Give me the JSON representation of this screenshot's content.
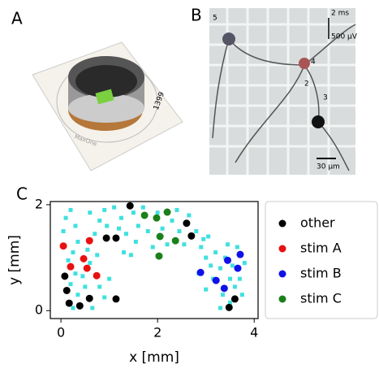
{
  "panels": {
    "a": {
      "label": "A",
      "chip_number": "1399",
      "chip_brand": "MaxOne"
    },
    "b": {
      "label": "B",
      "electrode": "5",
      "time_scale": "2 ms",
      "voltage_scale": "500 µV",
      "markers": [
        "4",
        "2",
        "3"
      ],
      "length_scale": "30 µm"
    },
    "c": {
      "label": "C"
    }
  },
  "chart_data": {
    "type": "scatter",
    "xlabel": "x [mm]",
    "ylabel": "y [mm]",
    "xlim": [
      -0.22,
      4.08
    ],
    "ylim": [
      -0.15,
      2.06
    ],
    "xticks": [
      0,
      2,
      4
    ],
    "yticks": [
      0,
      2
    ],
    "legend": "right",
    "series": [
      {
        "color": "#40e0e0",
        "marker": "square",
        "x": [
          0.05,
          0.1,
          0.2,
          0.3,
          0.35,
          0.25,
          0.15,
          0.3,
          0.2,
          0.35,
          0.5,
          0.45,
          0.6,
          0.55,
          0.7,
          0.8,
          0.6,
          0.9,
          0.75,
          0.8,
          0.65,
          0.25,
          0.95,
          1.0,
          0.9,
          1.1,
          1.25,
          1.2,
          1.35,
          1.5,
          1.6,
          1.55,
          1.7,
          1.8,
          1.9,
          2.0,
          2.1,
          2.2,
          2.3,
          2.4,
          2.45,
          2.55,
          2.65,
          1.3,
          1.45,
          2.8,
          2.9,
          3.0,
          2.95,
          3.1,
          3.2,
          3.15,
          3.3,
          3.35,
          3.4,
          3.5,
          3.55,
          3.6,
          3.65,
          3.7,
          3.75,
          3.8,
          3.5,
          3.3,
          3.0,
          2.85,
          3.05,
          3.45
        ],
        "values": [
          1.5,
          1.75,
          1.9,
          1.6,
          1.3,
          1.1,
          0.95,
          0.7,
          0.5,
          0.3,
          0.45,
          0.65,
          0.9,
          1.15,
          1.45,
          1.7,
          1.85,
          1.9,
          1.05,
          0.45,
          0.05,
          0.05,
          1.6,
          0.6,
          0.25,
          1.95,
          1.75,
          1.55,
          1.45,
          1.85,
          1.6,
          1.3,
          1.95,
          1.5,
          1.2,
          1.85,
          1.55,
          1.25,
          1.7,
          1.9,
          1.5,
          1.25,
          1.8,
          1.1,
          1.05,
          1.5,
          1.2,
          1.0,
          1.35,
          0.85,
          1.1,
          0.6,
          0.8,
          0.3,
          1.0,
          0.6,
          0.85,
          0.45,
          1.2,
          0.6,
          0.3,
          0.9,
          0.15,
          0.05,
          0.4,
          0.7,
          1.4,
          1.25
        ]
      },
      {
        "name": "other",
        "color": "#000000",
        "marker": "circle",
        "x": [
          1.43,
          0.94,
          1.14,
          2.6,
          2.7,
          0.08,
          0.12,
          0.17,
          0.39,
          0.59,
          1.14,
          3.48,
          3.6
        ],
        "values": [
          1.98,
          1.37,
          1.37,
          1.65,
          1.41,
          0.65,
          0.38,
          0.14,
          0.09,
          0.23,
          0.22,
          0.06,
          0.22
        ]
      },
      {
        "name": "stim A",
        "color": "#e81010",
        "marker": "circle",
        "x": [
          0.05,
          0.59,
          0.47,
          0.2,
          0.54,
          0.74
        ],
        "values": [
          1.22,
          1.32,
          0.98,
          0.83,
          0.8,
          0.66
        ]
      },
      {
        "name": "stim B",
        "color": "#1010e8",
        "marker": "circle",
        "x": [
          2.89,
          3.45,
          3.71,
          3.66,
          3.21,
          3.38
        ],
        "values": [
          0.72,
          0.95,
          1.06,
          0.8,
          0.57,
          0.42
        ]
      },
      {
        "name": "stim C",
        "color": "#1a801a",
        "marker": "circle",
        "x": [
          1.73,
          1.98,
          2.2,
          2.05,
          2.37,
          2.03
        ],
        "values": [
          1.8,
          1.75,
          1.86,
          1.4,
          1.32,
          1.03
        ]
      }
    ]
  }
}
